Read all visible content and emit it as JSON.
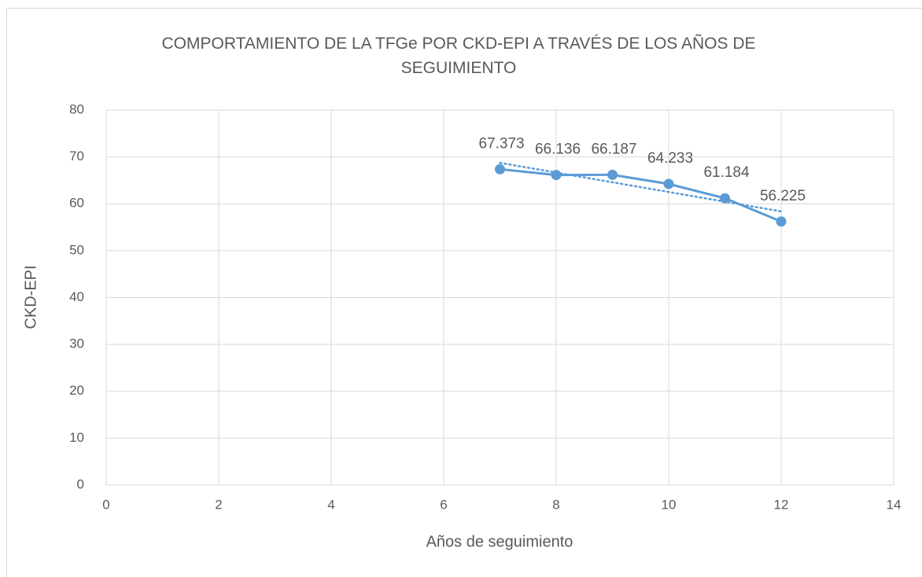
{
  "chart_data": {
    "type": "scatter-line",
    "title": "COMPORTAMIENTO DE LA TFGe POR CKD-EPI A TRAVÉS DE LOS AÑOS DE SEGUIMIENTO",
    "x_label": "Años de seguimiento",
    "y_label": "CKD-EPI",
    "x": [
      7,
      8,
      9,
      10,
      11,
      12
    ],
    "series": [
      {
        "color": "#5b9bd5",
        "values": [
          67.373,
          66.136,
          66.187,
          64.233,
          61.184,
          56.225
        ]
      }
    ],
    "xlim": [
      0,
      14
    ],
    "xticks": [
      0,
      2,
      4,
      6,
      8,
      10,
      12,
      14
    ],
    "ylim": [
      0,
      80
    ],
    "yticks": [
      0,
      10,
      20,
      30,
      40,
      50,
      60,
      70,
      80
    ],
    "grid": true,
    "trendline": "linear",
    "data_labels": true
  }
}
